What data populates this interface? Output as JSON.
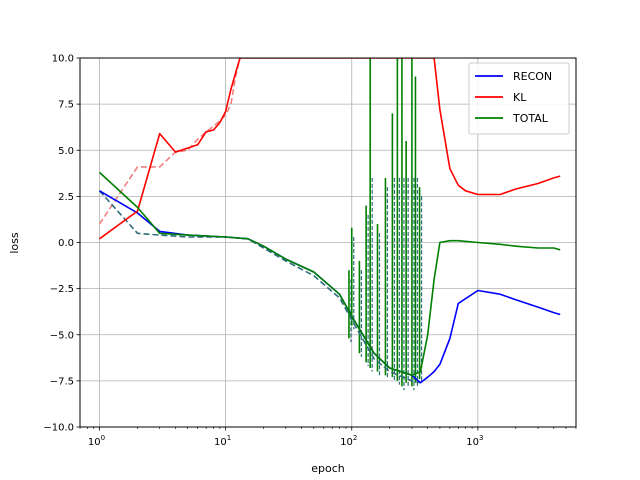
{
  "chart_data": {
    "type": "line",
    "title": "",
    "xlabel": "epoch",
    "ylabel": "loss",
    "xscale": "log",
    "xlim": [
      0.7,
      6000
    ],
    "ylim": [
      -10,
      10
    ],
    "grid": true,
    "legend_placement": "top-right",
    "x_ticks": [
      {
        "value": 1,
        "base": "10",
        "exp": "0"
      },
      {
        "value": 10,
        "base": "10",
        "exp": "1"
      },
      {
        "value": 100,
        "base": "10",
        "exp": "2"
      },
      {
        "value": 1000,
        "base": "10",
        "exp": "3"
      }
    ],
    "y_ticks": [
      {
        "value": -10,
        "label": "−10.0"
      },
      {
        "value": -7.5,
        "label": "−7.5"
      },
      {
        "value": -5,
        "label": "−5.0"
      },
      {
        "value": -2.5,
        "label": "−2.5"
      },
      {
        "value": 0,
        "label": "0.0"
      },
      {
        "value": 2.5,
        "label": "2.5"
      },
      {
        "value": 5,
        "label": "5.0"
      },
      {
        "value": 7.5,
        "label": "7.5"
      },
      {
        "value": 10,
        "label": "10.0"
      }
    ],
    "series": [
      {
        "name": "RECON",
        "color": "#0000ff",
        "style": "solid",
        "x": [
          1,
          2,
          3,
          5,
          10,
          15,
          20,
          30,
          50,
          80,
          100,
          150,
          200,
          300,
          350,
          400,
          450,
          500,
          600,
          700,
          1000,
          1500,
          2000,
          3000,
          4000,
          4500
        ],
        "y": [
          2.8,
          1.6,
          0.6,
          0.4,
          0.3,
          0.2,
          -0.2,
          -0.9,
          -1.6,
          -2.8,
          -4.0,
          -6.0,
          -6.8,
          -7.2,
          -7.6,
          -7.3,
          -7.0,
          -6.6,
          -5.2,
          -3.3,
          -2.6,
          -2.8,
          -3.1,
          -3.5,
          -3.8,
          -3.9
        ]
      },
      {
        "name": "KL",
        "color": "#ff0000",
        "style": "solid",
        "x": [
          1,
          2,
          3,
          4,
          6,
          7,
          8,
          9,
          10,
          11,
          12,
          13,
          450,
          500,
          600,
          700,
          800,
          1000,
          1500,
          2000,
          3000,
          4000,
          4500
        ],
        "y": [
          0.2,
          1.7,
          5.9,
          4.9,
          5.3,
          6.0,
          6.1,
          6.5,
          7.1,
          8.3,
          9.2,
          10.0,
          10.0,
          7.2,
          4.0,
          3.1,
          2.8,
          2.6,
          2.6,
          2.9,
          3.2,
          3.5,
          3.6
        ]
      },
      {
        "name": "TOTAL",
        "color": "#008000",
        "style": "solid",
        "x": [
          1,
          2,
          3,
          5,
          10,
          15,
          20,
          30,
          50,
          80,
          100,
          150,
          200,
          300,
          350,
          400,
          450,
          500,
          600,
          700,
          1000,
          1500,
          2000,
          3000,
          4000,
          4500
        ],
        "y": [
          3.8,
          1.9,
          0.5,
          0.4,
          0.3,
          0.2,
          -0.2,
          -0.9,
          -1.6,
          -2.8,
          -4.0,
          -6.0,
          -6.8,
          -7.2,
          -7.0,
          -5.0,
          -2.0,
          0.0,
          0.1,
          0.1,
          0.0,
          -0.1,
          -0.2,
          -0.3,
          -0.3,
          -0.4
        ]
      },
      {
        "name": "",
        "color": "#f08080",
        "style": "dashed",
        "x": [
          1,
          2,
          3,
          4,
          5,
          6,
          7,
          8,
          9,
          10,
          11,
          12,
          13
        ],
        "y": [
          1.0,
          4.1,
          4.1,
          4.9,
          5.0,
          5.6,
          6.0,
          6.3,
          6.6,
          6.9,
          7.5,
          9.0,
          10.0
        ]
      },
      {
        "name": "",
        "color": "#2e6f7a",
        "style": "dashed",
        "x": [
          1,
          2,
          3,
          5,
          10,
          15,
          20,
          30,
          50,
          80,
          100,
          150,
          200,
          300,
          350
        ],
        "y": [
          2.8,
          0.5,
          0.4,
          0.3,
          0.3,
          0.2,
          -0.3,
          -1.0,
          -1.8,
          -3.0,
          -4.2,
          -6.3,
          -7.0,
          -7.5,
          -7.6
        ]
      }
    ],
    "spikes": [
      {
        "x": 95,
        "top": -1.5,
        "bottom": -5.2
      },
      {
        "x": 100,
        "top": 0.8,
        "bottom": -4.5
      },
      {
        "x": 115,
        "top": -1.0,
        "bottom": -6.0
      },
      {
        "x": 130,
        "top": 2.0,
        "bottom": -6.5
      },
      {
        "x": 140,
        "top": 10.0,
        "bottom": -6.8
      },
      {
        "x": 160,
        "top": 1.0,
        "bottom": -7.0
      },
      {
        "x": 185,
        "top": 3.5,
        "bottom": -7.2
      },
      {
        "x": 210,
        "top": 7.0,
        "bottom": -7.3
      },
      {
        "x": 230,
        "top": 10.0,
        "bottom": -7.5
      },
      {
        "x": 250,
        "top": 10.0,
        "bottom": -7.8
      },
      {
        "x": 270,
        "top": 5.5,
        "bottom": -7.6
      },
      {
        "x": 300,
        "top": 10.0,
        "bottom": -7.8
      },
      {
        "x": 320,
        "top": 9.0,
        "bottom": -7.6
      },
      {
        "x": 345,
        "top": 3.0,
        "bottom": -7.4
      }
    ]
  }
}
